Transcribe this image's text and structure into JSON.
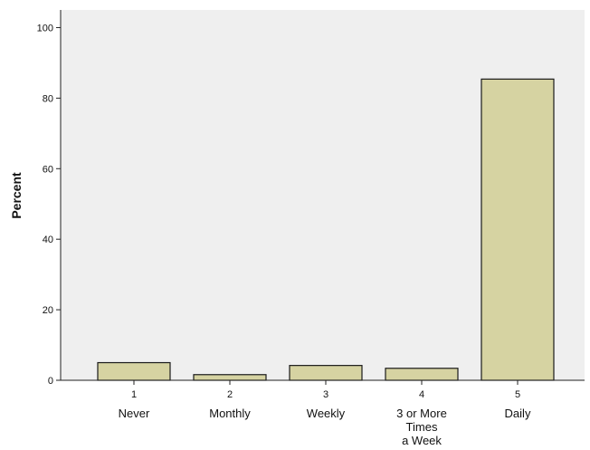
{
  "chart_data": {
    "type": "bar",
    "ylabel": "Percent",
    "xlabel": "",
    "ylim": [
      0,
      105
    ],
    "yticks": [
      0,
      20,
      40,
      60,
      80,
      100
    ],
    "grid": false,
    "categories": [
      {
        "code": "1",
        "lines": [
          "Never"
        ]
      },
      {
        "code": "2",
        "lines": [
          "Monthly"
        ]
      },
      {
        "code": "3",
        "lines": [
          "Weekly"
        ]
      },
      {
        "code": "4",
        "lines": [
          "3 or More",
          "Times",
          "a Week"
        ]
      },
      {
        "code": "5",
        "lines": [
          "Daily"
        ]
      }
    ],
    "values": [
      5.0,
      1.6,
      4.2,
      3.4,
      85.4
    ],
    "colors": {
      "plot_background": "#efefef",
      "bar_fill": "#d6d3a2",
      "bar_stroke": "#1a1a1a",
      "axis": "#222222"
    }
  }
}
